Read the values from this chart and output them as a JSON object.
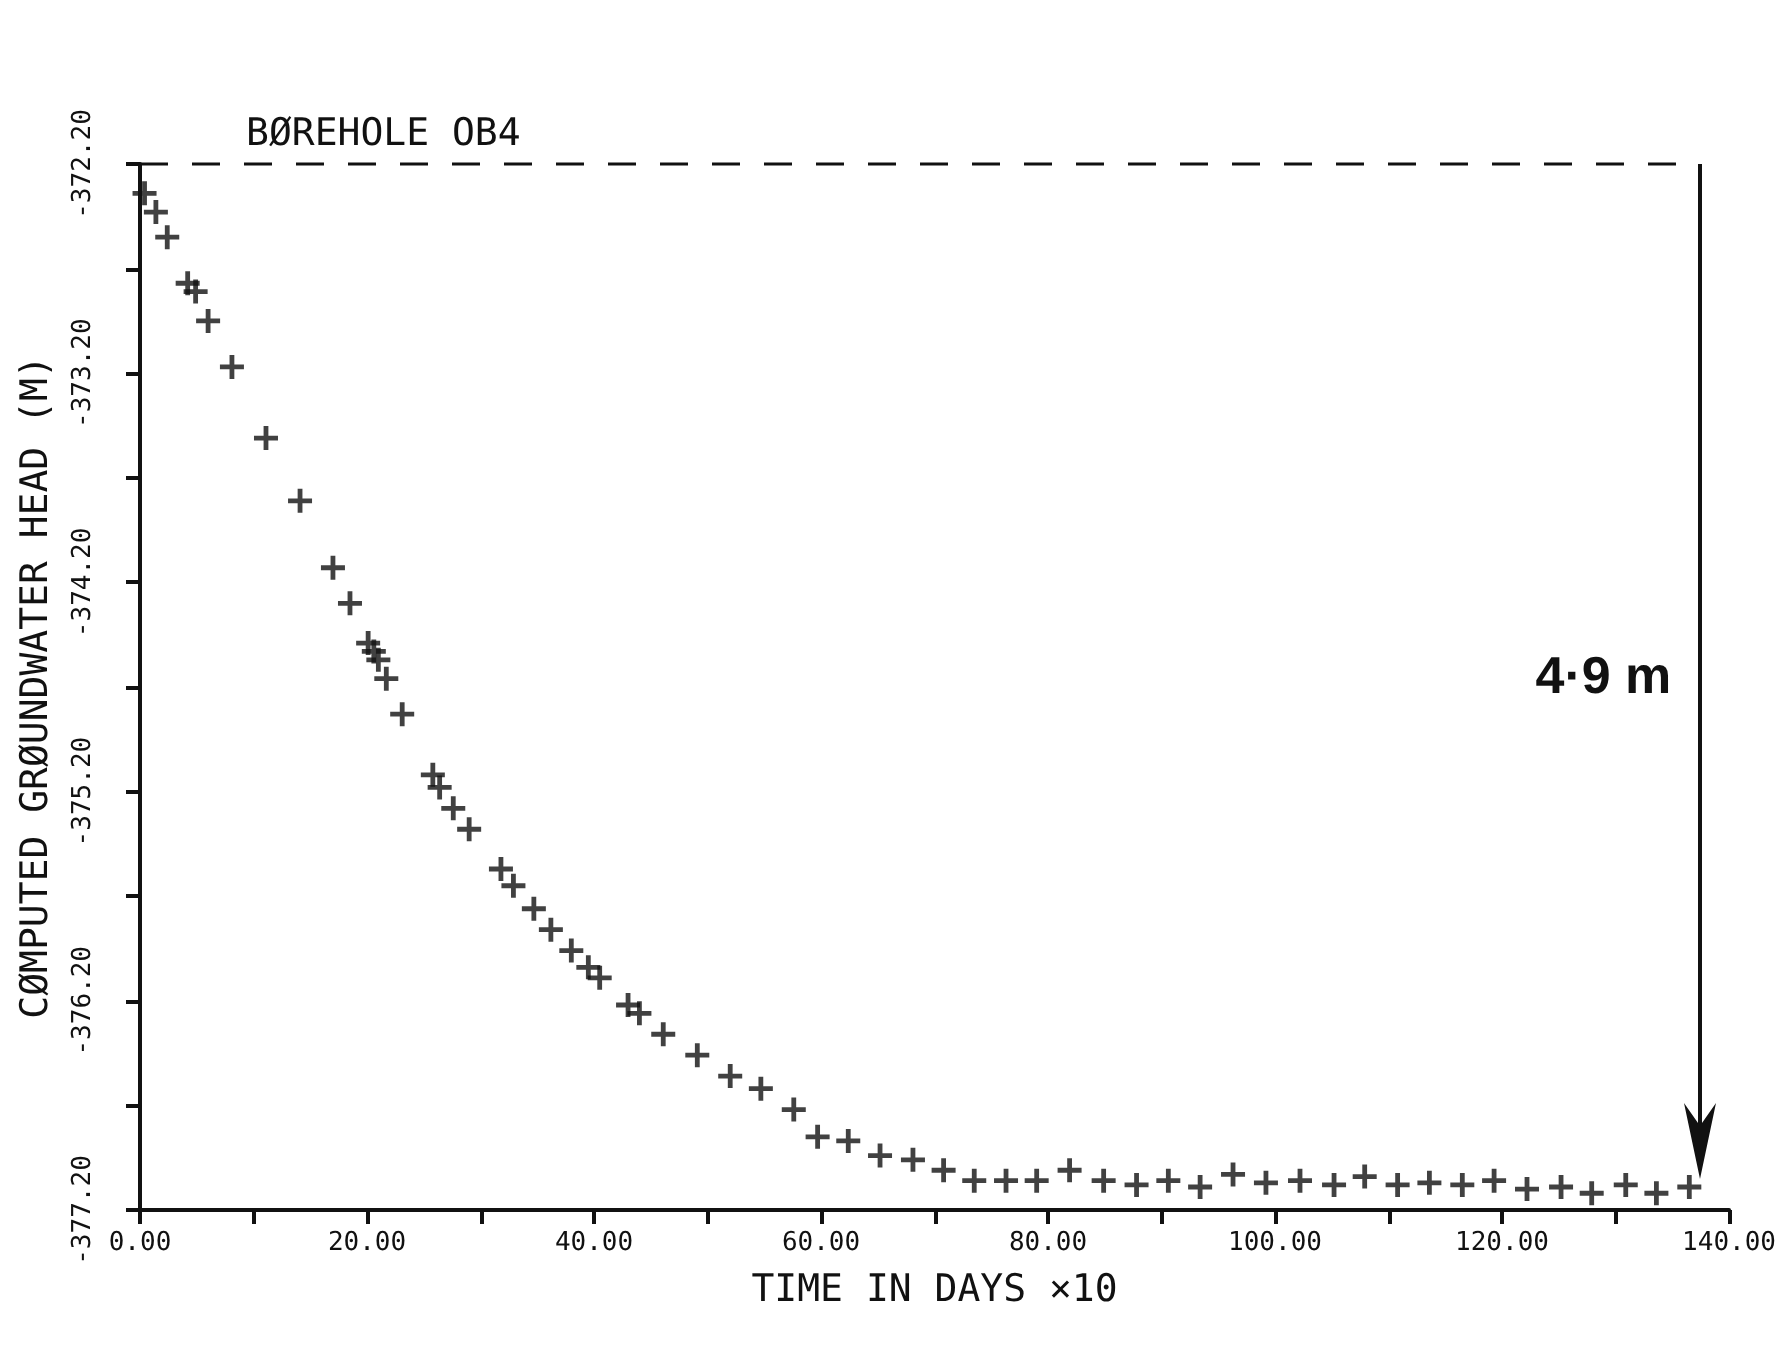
{
  "chart_data": {
    "type": "scatter",
    "title": "BØREHOLE OB4",
    "xlabel": "TIME IN DAYS ×10",
    "ylabel": "CØMPUTED GRØUNDWATER HEAD (M)",
    "x": [
      0.4,
      1.4,
      2.4,
      4.2,
      4.9,
      6.0,
      8.1,
      11.1,
      14.1,
      17.0,
      18.5,
      20.1,
      20.6,
      21.0,
      21.7,
      23.1,
      25.8,
      26.4,
      27.6,
      29.0,
      31.8,
      32.9,
      34.7,
      36.2,
      38.0,
      39.5,
      40.5,
      43.0,
      44.0,
      46.1,
      49.1,
      52.0,
      54.7,
      57.6,
      59.7,
      62.4,
      65.2,
      68.1,
      70.8,
      73.5,
      76.3,
      79.0,
      81.9,
      84.9,
      87.8,
      90.6,
      93.4,
      96.3,
      99.2,
      102.2,
      105.2,
      107.9,
      110.8,
      113.6,
      116.5,
      119.3,
      122.2,
      125.2,
      127.9,
      130.9,
      133.6,
      136.5
    ],
    "values": [
      -372.34,
      -372.43,
      -372.55,
      -372.77,
      -372.81,
      -372.95,
      -373.17,
      -373.51,
      -373.81,
      -374.13,
      -374.3,
      -374.49,
      -374.53,
      -374.57,
      -374.66,
      -374.83,
      -375.12,
      -375.18,
      -375.28,
      -375.38,
      -375.57,
      -375.65,
      -375.76,
      -375.86,
      -375.96,
      -376.04,
      -376.09,
      -376.22,
      -376.26,
      -376.36,
      -376.46,
      -376.56,
      -376.62,
      -376.72,
      -376.85,
      -376.87,
      -376.94,
      -376.96,
      -377.01,
      -377.06,
      -377.06,
      -377.06,
      -377.01,
      -377.06,
      -377.08,
      -377.06,
      -377.09,
      -377.03,
      -377.07,
      -377.06,
      -377.08,
      -377.04,
      -377.08,
      -377.07,
      -377.08,
      -377.06,
      -377.1,
      -377.09,
      -377.12,
      -377.08,
      -377.12,
      -377.09
    ],
    "color": "#111111",
    "marker": "cross",
    "xlim": [
      0,
      140
    ],
    "xticks": [
      {
        "value": 0,
        "label": "0.00"
      },
      {
        "value": 10,
        "label": null
      },
      {
        "value": 20,
        "label": "20.00"
      },
      {
        "value": 30,
        "label": null
      },
      {
        "value": 40,
        "label": "40.00"
      },
      {
        "value": 50,
        "label": null
      },
      {
        "value": 60,
        "label": "60.00"
      },
      {
        "value": 70,
        "label": null
      },
      {
        "value": 80,
        "label": "80.00"
      },
      {
        "value": 90,
        "label": null
      },
      {
        "value": 100,
        "label": "100.00"
      },
      {
        "value": 110,
        "label": null
      },
      {
        "value": 120,
        "label": "120.00"
      },
      {
        "value": 130,
        "label": null
      },
      {
        "value": 140,
        "label": "140.00"
      }
    ],
    "ylim": [
      -377.2,
      -372.2
    ],
    "yticks": [
      {
        "value": -377.2,
        "label": "-377.20"
      },
      {
        "value": -376.7,
        "label": null
      },
      {
        "value": -376.2,
        "label": "-376.20"
      },
      {
        "value": -375.7,
        "label": null
      },
      {
        "value": -375.2,
        "label": "-375.20"
      },
      {
        "value": -374.7,
        "label": null
      },
      {
        "value": -374.2,
        "label": "-374.20"
      },
      {
        "value": -373.7,
        "label": null
      },
      {
        "value": -373.2,
        "label": "-373.20"
      },
      {
        "value": -372.7,
        "label": null
      },
      {
        "value": -372.2,
        "label": "-372.20"
      }
    ],
    "ref_lines": [
      {
        "axis": "y",
        "value": -372.2,
        "label": null,
        "line_style": "dashed",
        "color": "#111111"
      }
    ],
    "annotations": [
      "4·9 m"
    ],
    "grid": false
  }
}
